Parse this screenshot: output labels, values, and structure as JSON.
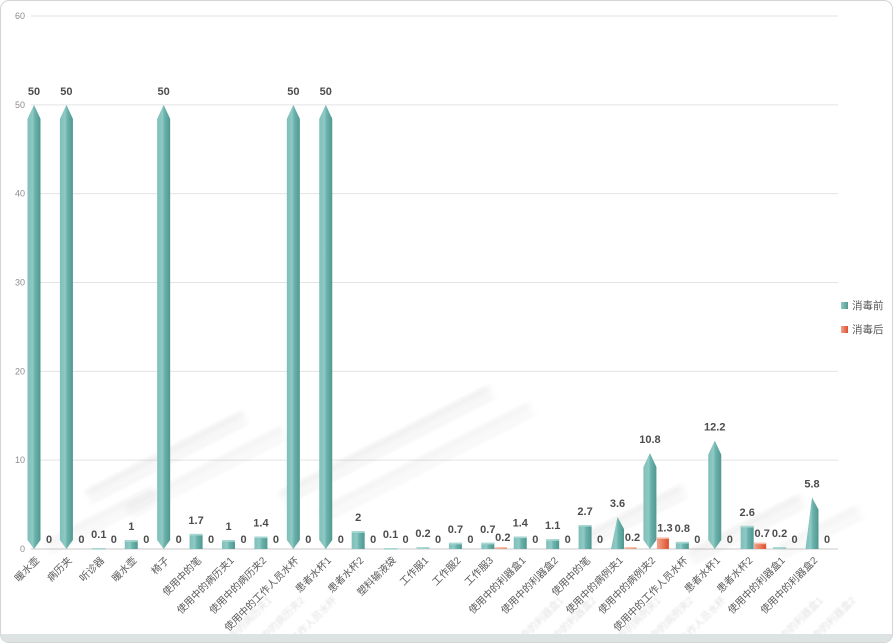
{
  "chart_data": {
    "type": "bar",
    "title": "",
    "xlabel": "",
    "ylabel": "",
    "categories": [
      "暖水壶",
      "病历夹",
      "听诊器",
      "暖水壶",
      "椅子",
      "使用中的笔",
      "使用中的病历夹1",
      "使用中的病历夹2",
      "使用中的工作人员水杯",
      "患者水杯1",
      "患者水杯2",
      "塑料输液袋",
      "工作服1",
      "工作服2",
      "工作服3",
      "使用中的利器盒1",
      "使用中的利器盒2",
      "使用中的笔",
      "使用中的病例夹1",
      "使用中的病例夹2",
      "使用中的工作人员水杯",
      "患者水杯1",
      "患者水杯2",
      "使用中的利器盒1",
      "使用中的利器盒2"
    ],
    "series": [
      {
        "name": "消毒前",
        "color": "#6db4ae",
        "color_light": "#8fc9c4",
        "color_dark": "#4f978f",
        "values": [
          50,
          50,
          0.1,
          1,
          50,
          1.7,
          1,
          1.4,
          50,
          50,
          2,
          0.1,
          0.2,
          0.7,
          0.7,
          1.4,
          1.1,
          2.7,
          3.6,
          10.8,
          0.8,
          12.2,
          2.6,
          0.2,
          5.8
        ]
      },
      {
        "name": "消毒后",
        "color": "#ea7a5b",
        "color_light": "#f2a18c",
        "color_dark": "#dc4f2e",
        "values": [
          0,
          0,
          0,
          0,
          0,
          0,
          0,
          0,
          0,
          0,
          0,
          0,
          0,
          0,
          0.2,
          0,
          0,
          0,
          0.2,
          1.3,
          0,
          0,
          0.7,
          0,
          0
        ]
      }
    ],
    "ylim": [
      0,
      60
    ],
    "yticks": [
      0,
      10,
      20,
      30,
      40,
      50,
      60
    ],
    "grid": true,
    "legend_position": "right",
    "value_labels": true
  },
  "frame": {
    "background": "#ffffff",
    "border_color": "#d5d5d5",
    "bottom_bar_color": "#dce3e2"
  },
  "axis": {
    "tick_label_color": "#8c8c8c",
    "category_label_color": "#595959",
    "value_label_color": "#4d4d4d",
    "gridline_color": "#e3e3e3",
    "baseline_color": "#c8c8c8"
  }
}
